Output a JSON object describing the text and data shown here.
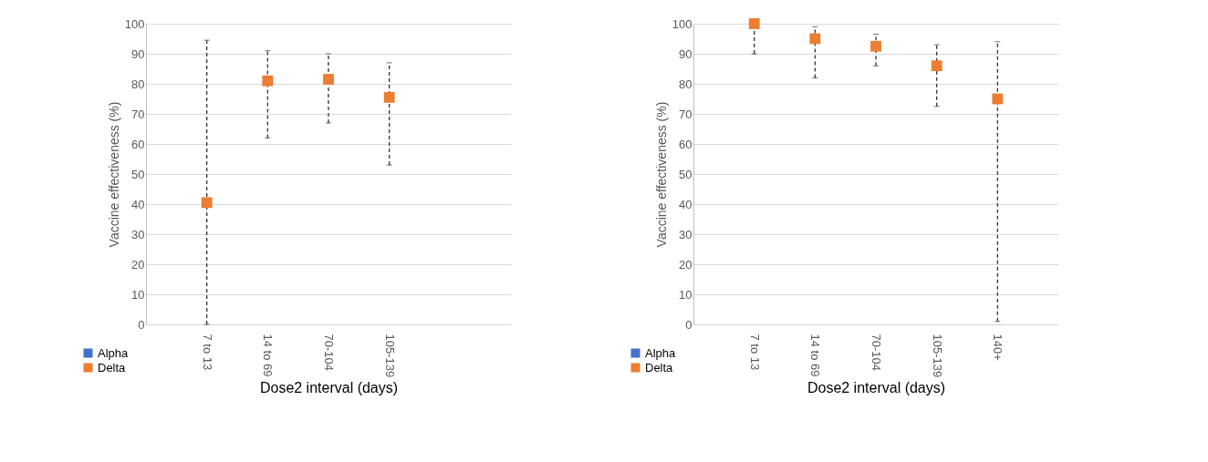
{
  "chart_data": [
    {
      "type": "scatter",
      "xlabel": "Dose2 interval (days)",
      "ylabel": "Vaccine effectiveness (%)",
      "categories": [
        "7 to 13",
        "14 to 69",
        "70-104",
        "105-139",
        null
      ],
      "ylim": [
        0,
        100
      ],
      "yticks": [
        0,
        10,
        20,
        30,
        40,
        50,
        60,
        70,
        80,
        90,
        100
      ],
      "grid": "y",
      "legend": "bottom left",
      "marker": "square",
      "line_style": "dashed",
      "series": [
        {
          "name": "Alpha",
          "color": "#4472c4",
          "values": [
            null,
            null,
            null,
            null,
            null
          ]
        },
        {
          "name": "Delta",
          "color": "#ed7d31",
          "values": [
            40.5,
            81,
            81.5,
            75.5,
            null
          ],
          "errors": [
            [
              0,
              94.5
            ],
            [
              62,
              91
            ],
            [
              67,
              90
            ],
            [
              53,
              87
            ],
            null
          ]
        }
      ]
    },
    {
      "type": "scatter",
      "xlabel": "Dose2 interval (days)",
      "ylabel": "Vaccine effectiveness (%)",
      "categories": [
        "7 to 13",
        "14 to 69",
        "70-104",
        "105-139",
        "140+"
      ],
      "ylim": [
        0,
        100
      ],
      "yticks": [
        0,
        10,
        20,
        30,
        40,
        50,
        60,
        70,
        80,
        90,
        100
      ],
      "grid": "y",
      "legend": "bottom left",
      "marker": "square",
      "line_style": "dashed",
      "series": [
        {
          "name": "Alpha",
          "color": "#4472c4",
          "values": [
            null,
            null,
            null,
            null,
            null
          ]
        },
        {
          "name": "Delta",
          "color": "#ed7d31",
          "values": [
            100,
            95,
            92.5,
            86,
            75
          ],
          "errors": [
            [
              90,
              100
            ],
            [
              82,
              99
            ],
            [
              86,
              96.5
            ],
            [
              72.5,
              93
            ],
            [
              1,
              94
            ]
          ]
        }
      ]
    }
  ]
}
